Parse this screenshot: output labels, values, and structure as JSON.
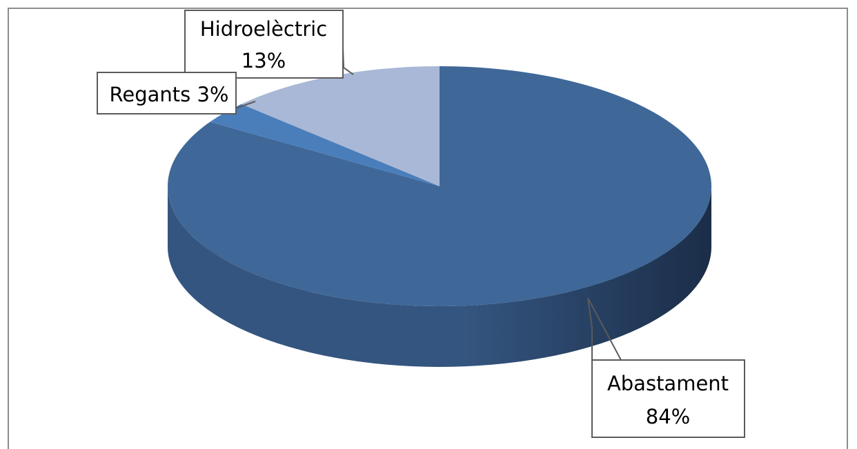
{
  "chart_data": {
    "type": "pie",
    "three_d": true,
    "slices": [
      {
        "label": "Abastament",
        "value": 84,
        "value_label": "84%",
        "color": "#3f6899"
      },
      {
        "label": "Regants",
        "value": 3,
        "value_label": "3%",
        "color": "#4a7ebb"
      },
      {
        "label": "Hidroelèctric",
        "value": 13,
        "value_label": "13%",
        "color": "#a9b8d6"
      }
    ],
    "data_labels": [
      {
        "lines": [
          "Abastament",
          "84%"
        ]
      },
      {
        "lines": [
          "Regants 3%"
        ]
      },
      {
        "lines": [
          "Hidroelèctric",
          "13%"
        ]
      }
    ],
    "title": "",
    "legend": "none"
  },
  "colors": {
    "side_dark": "#1b2d48",
    "side_light": "#34557f",
    "frame_border": "#8c8c8c",
    "callout_border": "#5a5a5a"
  }
}
